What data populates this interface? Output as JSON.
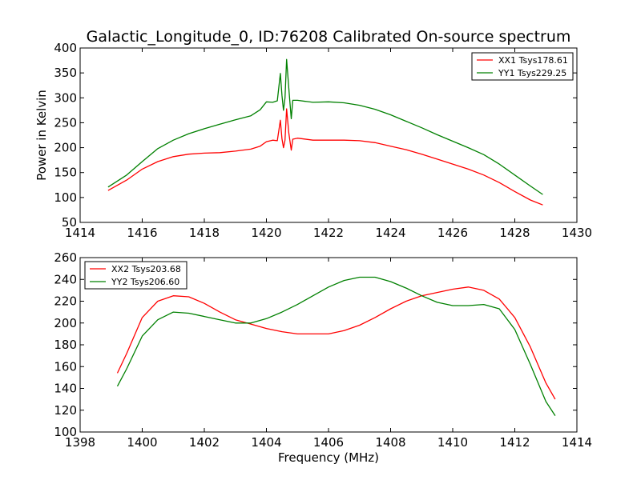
{
  "chart_data": [
    {
      "type": "line",
      "title": "Galactic_Longitude_0, ID:76208 Calibrated On-source spectrum",
      "xlabel": "",
      "ylabel": "Power in Kelvin",
      "xlim": [
        1414,
        1430
      ],
      "ylim": [
        50,
        400
      ],
      "xticks": [
        1414,
        1416,
        1418,
        1420,
        1422,
        1424,
        1426,
        1428,
        1430
      ],
      "yticks": [
        50,
        100,
        150,
        200,
        250,
        300,
        350,
        400
      ],
      "legend_position": "top-right",
      "series": [
        {
          "name": "XX1 Tsys178.61",
          "color": "#ff0000",
          "points": [
            [
              1414.9,
              114
            ],
            [
              1415.5,
              135
            ],
            [
              1416.0,
              157
            ],
            [
              1416.5,
              172
            ],
            [
              1417.0,
              182
            ],
            [
              1417.5,
              187
            ],
            [
              1418.0,
              189
            ],
            [
              1418.5,
              190
            ],
            [
              1419.0,
              193
            ],
            [
              1419.5,
              197
            ],
            [
              1419.8,
              203
            ],
            [
              1420.0,
              212
            ],
            [
              1420.2,
              215
            ],
            [
              1420.35,
              214
            ],
            [
              1420.45,
              255
            ],
            [
              1420.5,
              218
            ],
            [
              1420.55,
              200
            ],
            [
              1420.6,
              215
            ],
            [
              1420.65,
              278
            ],
            [
              1420.72,
              230
            ],
            [
              1420.8,
              195
            ],
            [
              1420.85,
              217
            ],
            [
              1421.0,
              219
            ],
            [
              1421.5,
              215
            ],
            [
              1422.0,
              215
            ],
            [
              1422.5,
              215
            ],
            [
              1423.0,
              214
            ],
            [
              1423.5,
              210
            ],
            [
              1424.0,
              203
            ],
            [
              1424.5,
              196
            ],
            [
              1425.0,
              187
            ],
            [
              1425.5,
              177
            ],
            [
              1426.0,
              167
            ],
            [
              1426.5,
              157
            ],
            [
              1427.0,
              145
            ],
            [
              1427.5,
              130
            ],
            [
              1428.0,
              112
            ],
            [
              1428.5,
              95
            ],
            [
              1428.9,
              85
            ]
          ]
        },
        {
          "name": "YY1 Tsys229.25",
          "color": "#008000",
          "points": [
            [
              1414.9,
              121
            ],
            [
              1415.5,
              145
            ],
            [
              1416.0,
              172
            ],
            [
              1416.5,
              198
            ],
            [
              1417.0,
              215
            ],
            [
              1417.5,
              228
            ],
            [
              1418.0,
              238
            ],
            [
              1418.5,
              247
            ],
            [
              1419.0,
              256
            ],
            [
              1419.5,
              264
            ],
            [
              1419.8,
              276
            ],
            [
              1420.0,
              292
            ],
            [
              1420.2,
              291
            ],
            [
              1420.35,
              294
            ],
            [
              1420.45,
              349
            ],
            [
              1420.5,
              305
            ],
            [
              1420.55,
              275
            ],
            [
              1420.6,
              300
            ],
            [
              1420.65,
              377
            ],
            [
              1420.72,
              320
            ],
            [
              1420.8,
              258
            ],
            [
              1420.85,
              295
            ],
            [
              1421.0,
              295
            ],
            [
              1421.5,
              291
            ],
            [
              1422.0,
              292
            ],
            [
              1422.5,
              290
            ],
            [
              1423.0,
              285
            ],
            [
              1423.5,
              277
            ],
            [
              1424.0,
              266
            ],
            [
              1424.5,
              253
            ],
            [
              1425.0,
              240
            ],
            [
              1425.5,
              226
            ],
            [
              1426.0,
              213
            ],
            [
              1426.5,
              200
            ],
            [
              1427.0,
              186
            ],
            [
              1427.5,
              167
            ],
            [
              1428.0,
              145
            ],
            [
              1428.5,
              123
            ],
            [
              1428.9,
              106
            ]
          ]
        }
      ]
    },
    {
      "type": "line",
      "title": "",
      "xlabel": "Frequency (MHz)",
      "ylabel": "",
      "xlim": [
        1398,
        1414
      ],
      "ylim": [
        100,
        260
      ],
      "xticks": [
        1398,
        1400,
        1402,
        1404,
        1406,
        1408,
        1410,
        1412,
        1414
      ],
      "yticks": [
        100,
        120,
        140,
        160,
        180,
        200,
        220,
        240,
        260
      ],
      "legend_position": "top-left",
      "series": [
        {
          "name": "XX2 Tsys203.68",
          "color": "#ff0000",
          "points": [
            [
              1399.2,
              154
            ],
            [
              1399.5,
              172
            ],
            [
              1400.0,
              205
            ],
            [
              1400.5,
              220
            ],
            [
              1401.0,
              225
            ],
            [
              1401.5,
              224
            ],
            [
              1402.0,
              218
            ],
            [
              1402.5,
              210
            ],
            [
              1403.0,
              203
            ],
            [
              1403.5,
              199
            ],
            [
              1404.0,
              195
            ],
            [
              1404.5,
              192
            ],
            [
              1405.0,
              190
            ],
            [
              1405.5,
              190
            ],
            [
              1406.0,
              190
            ],
            [
              1406.5,
              193
            ],
            [
              1407.0,
              198
            ],
            [
              1407.5,
              205
            ],
            [
              1408.0,
              213
            ],
            [
              1408.5,
              220
            ],
            [
              1409.0,
              225
            ],
            [
              1409.5,
              228
            ],
            [
              1410.0,
              231
            ],
            [
              1410.5,
              233
            ],
            [
              1411.0,
              230
            ],
            [
              1411.5,
              222
            ],
            [
              1412.0,
              205
            ],
            [
              1412.5,
              178
            ],
            [
              1413.0,
              145
            ],
            [
              1413.3,
              130
            ]
          ]
        },
        {
          "name": "YY2 Tsys206.60",
          "color": "#008000",
          "points": [
            [
              1399.2,
              142
            ],
            [
              1399.5,
              158
            ],
            [
              1400.0,
              188
            ],
            [
              1400.5,
              203
            ],
            [
              1401.0,
              210
            ],
            [
              1401.5,
              209
            ],
            [
              1402.0,
              206
            ],
            [
              1402.5,
              203
            ],
            [
              1403.0,
              200
            ],
            [
              1403.5,
              200
            ],
            [
              1404.0,
              204
            ],
            [
              1404.5,
              210
            ],
            [
              1405.0,
              217
            ],
            [
              1405.5,
              225
            ],
            [
              1406.0,
              233
            ],
            [
              1406.5,
              239
            ],
            [
              1407.0,
              242
            ],
            [
              1407.5,
              242
            ],
            [
              1408.0,
              238
            ],
            [
              1408.5,
              232
            ],
            [
              1409.0,
              225
            ],
            [
              1409.5,
              219
            ],
            [
              1410.0,
              216
            ],
            [
              1410.5,
              216
            ],
            [
              1411.0,
              217
            ],
            [
              1411.5,
              213
            ],
            [
              1412.0,
              194
            ],
            [
              1412.5,
              162
            ],
            [
              1413.0,
              128
            ],
            [
              1413.3,
              115
            ]
          ]
        }
      ]
    }
  ]
}
